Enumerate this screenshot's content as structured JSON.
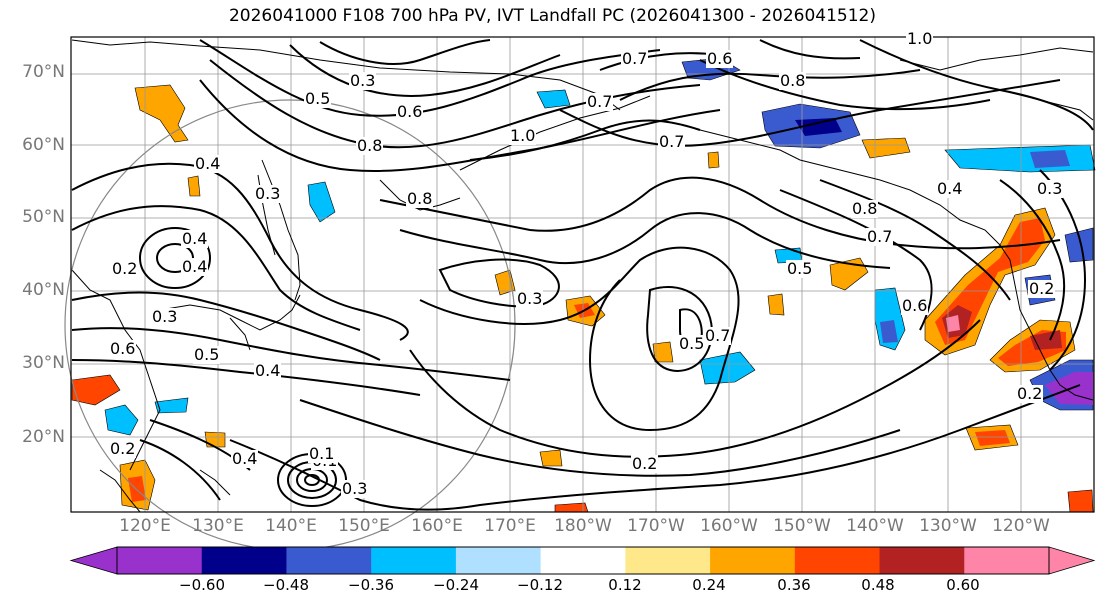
{
  "title": "2026041000 F108 700 hPa PV, IVT Landfall PC (2026041300 - 2026041512)",
  "lat_labels": [
    "70°N",
    "60°N",
    "50°N",
    "40°N",
    "30°N",
    "20°N"
  ],
  "lon_labels": [
    "120°E",
    "130°E",
    "140°E",
    "150°E",
    "160°E",
    "170°E",
    "180°W",
    "170°W",
    "160°W",
    "150°W",
    "140°W",
    "130°W",
    "120°W"
  ],
  "colorbar": {
    "ticks": [
      "−0.60",
      "−0.48",
      "−0.36",
      "−0.24",
      "−0.12",
      "0.12",
      "0.24",
      "0.36",
      "0.48",
      "0.60"
    ],
    "colors": [
      "#9932cc",
      "#00008b",
      "#3a5bd0",
      "#00bfff",
      "#b0e0ff",
      "#ffffff",
      "#ffe88a",
      "#ffa500",
      "#ff4500",
      "#b22222",
      "#ff85a8"
    ]
  },
  "contour_labels": [
    "0.3",
    "0.5",
    "0.6",
    "0.8",
    "0.8",
    "1.0",
    "0.7",
    "0.7",
    "0.6",
    "0.8",
    "0.8",
    "0.7",
    "0.5",
    "0.4",
    "0.3",
    "0.2",
    "0.4",
    "0.3",
    "0.6",
    "0.5",
    "0.4",
    "0.3",
    "0.5",
    "0.7",
    "0.6",
    "0.4",
    "0.2",
    "0.2",
    "0.1",
    "0.3",
    "0.1",
    "0.2",
    "0.2",
    "0.4",
    "1.0",
    "0.7",
    "0.4",
    "0.3"
  ]
}
